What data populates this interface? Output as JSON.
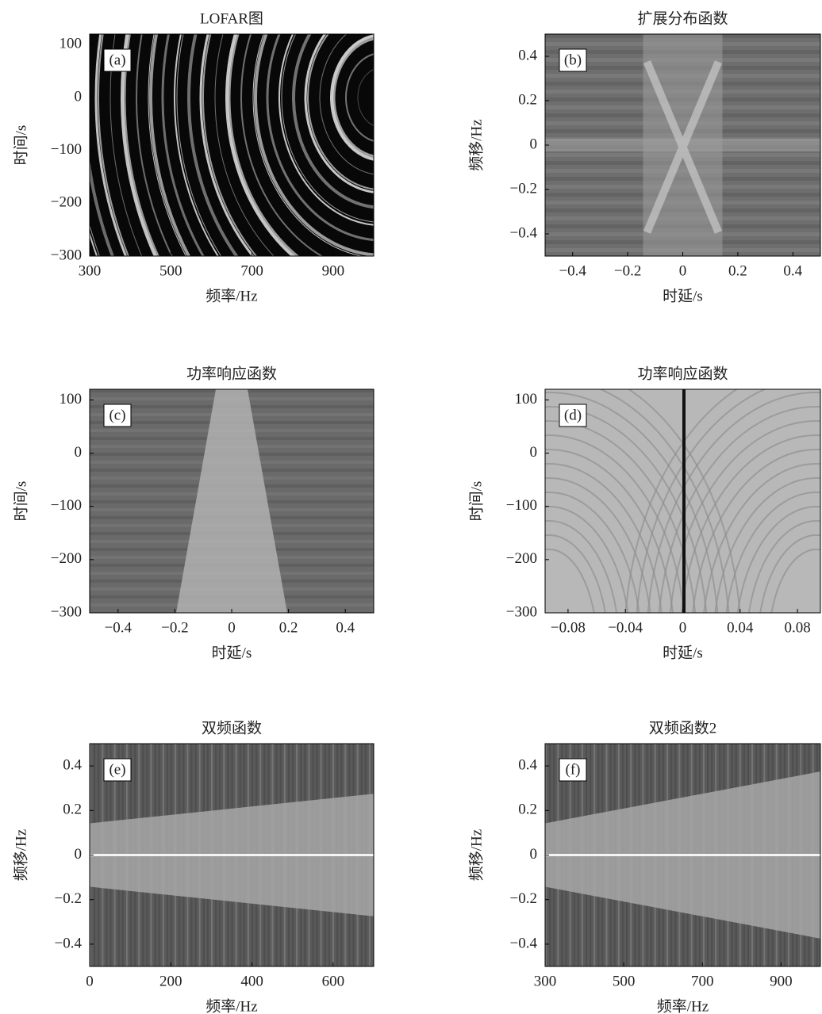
{
  "chart_data": [
    {
      "type": "image",
      "title": "LOFAR图",
      "panel_label": "(a)",
      "xlabel": "频率/Hz",
      "ylabel": "时间/s",
      "xlim": [
        300,
        1000
      ],
      "xticks": [
        300,
        500,
        700,
        900
      ],
      "ylim": [
        -300,
        120
      ],
      "yticks": [
        100,
        0,
        {
          "value": -100,
          "label": "−100"
        },
        {
          "value": -200,
          "label": "−200"
        },
        {
          "value": -300,
          "label": "−300"
        }
      ]
    },
    {
      "type": "image",
      "title": "扩展分布函数",
      "panel_label": "(b)",
      "xlabel": "时延/s",
      "ylabel": "频移/Hz",
      "xlim": [
        -0.5,
        0.5
      ],
      "xticks": [
        {
          "value": -0.4,
          "label": "−0.4"
        },
        {
          "value": -0.2,
          "label": "−0.2"
        },
        0,
        0.2,
        0.4
      ],
      "ylim": [
        -0.5,
        0.5
      ],
      "yticks": [
        0.4,
        0.2,
        0,
        {
          "value": -0.2,
          "label": "−0.2"
        },
        {
          "value": -0.4,
          "label": "−0.4"
        }
      ]
    },
    {
      "type": "image",
      "title": "功率响应函数",
      "panel_label": "(c)",
      "xlabel": "时延/s",
      "ylabel": "时间/s",
      "xlim": [
        -0.5,
        0.5
      ],
      "xticks": [
        {
          "value": -0.4,
          "label": "−0.4"
        },
        {
          "value": -0.2,
          "label": "−0.2"
        },
        0,
        0.2,
        0.4
      ],
      "ylim": [
        -300,
        120
      ],
      "yticks": [
        100,
        0,
        {
          "value": -100,
          "label": "−100"
        },
        {
          "value": -200,
          "label": "−200"
        },
        {
          "value": -300,
          "label": "−300"
        }
      ]
    },
    {
      "type": "image",
      "title": "功率响应函数",
      "panel_label": "(d)",
      "xlabel": "时延/s",
      "ylabel": "时间/s",
      "xlim": [
        -0.096,
        0.096
      ],
      "xticks": [
        {
          "value": -0.08,
          "label": "−0.08"
        },
        {
          "value": -0.04,
          "label": "−0.04"
        },
        0,
        0.04,
        0.08
      ],
      "ylim": [
        -300,
        120
      ],
      "yticks": [
        100,
        0,
        {
          "value": -100,
          "label": "−100"
        },
        {
          "value": -200,
          "label": "−200"
        },
        {
          "value": -300,
          "label": "−300"
        }
      ]
    },
    {
      "type": "image",
      "title": "双频函数",
      "panel_label": "(e)",
      "xlabel": "频率/Hz",
      "ylabel": "频移/Hz",
      "xlim": [
        0,
        700
      ],
      "xticks": [
        0,
        200,
        400,
        600
      ],
      "ylim": [
        -0.5,
        0.5
      ],
      "yticks": [
        0.4,
        0.2,
        0,
        {
          "value": -0.2,
          "label": "−0.2"
        },
        {
          "value": -0.4,
          "label": "−0.4"
        }
      ]
    },
    {
      "type": "image",
      "title": "双频函数2",
      "panel_label": "(f)",
      "xlabel": "频率/Hz",
      "ylabel": "频移/Hz",
      "xlim": [
        300,
        1000
      ],
      "xticks": [
        300,
        500,
        700,
        900
      ],
      "ylim": [
        -0.5,
        0.5
      ],
      "yticks": [
        0.4,
        0.2,
        0,
        {
          "value": -0.2,
          "label": "−0.2"
        },
        {
          "value": -0.4,
          "label": "−0.4"
        }
      ]
    }
  ]
}
